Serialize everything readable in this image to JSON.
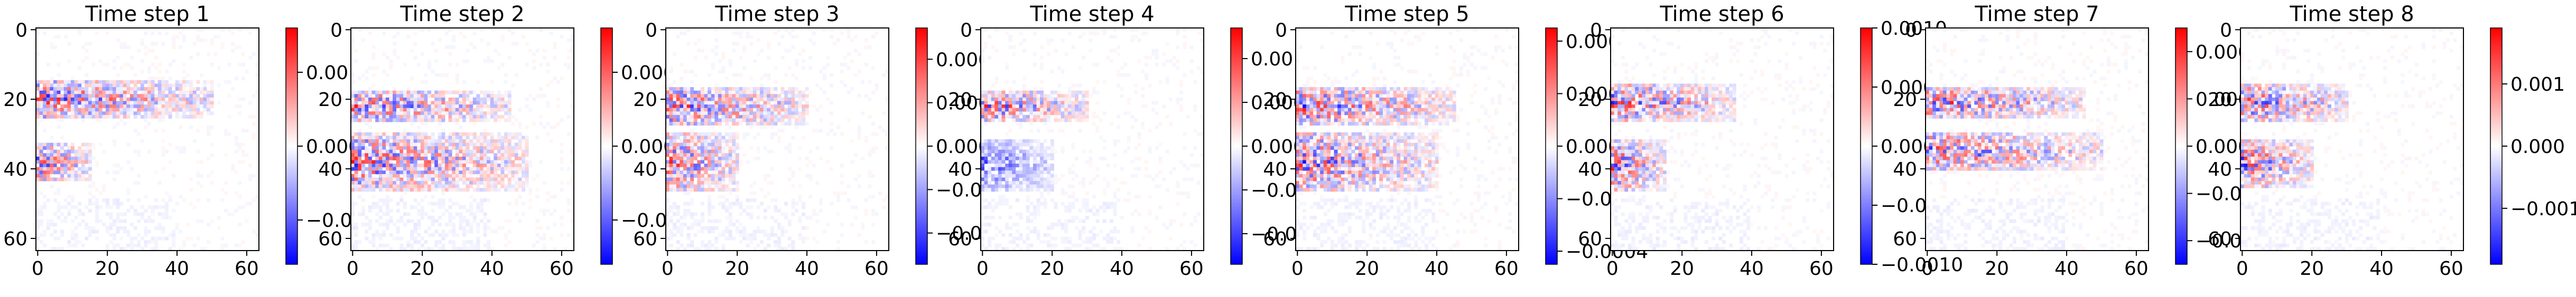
{
  "figure": {
    "background": "#ffffff",
    "colormap": "bwr",
    "colormap_colors": [
      "#0000ff",
      "#ffffff",
      "#ff0000"
    ]
  },
  "chart_data": [
    {
      "type": "heatmap",
      "title": "Time step 1",
      "xlabel": "",
      "ylabel": "",
      "xlim": [
        0,
        64
      ],
      "ylim": [
        64,
        0
      ],
      "xticks": [
        0,
        20,
        40,
        60
      ],
      "yticks": [
        0,
        20,
        40,
        60
      ],
      "xtick_labels": [
        "0",
        "20",
        "40",
        "60"
      ],
      "ytick_labels": [
        "0",
        "20",
        "40",
        "60"
      ],
      "colorbar": {
        "vmin": -0.0016,
        "vmax": 0.0016,
        "ticks": [
          -0.001,
          0.0,
          0.001
        ],
        "tick_labels": [
          "−0.001",
          "0.000",
          "0.001"
        ]
      },
      "dominant_features": [
        {
          "rows": [
            15,
            25
          ],
          "cols": [
            0,
            50
          ],
          "sign": "mixed"
        },
        {
          "rows": [
            33,
            43
          ],
          "cols": [
            0,
            15
          ],
          "sign": "mixed"
        }
      ]
    },
    {
      "type": "heatmap",
      "title": "Time step 2",
      "xlabel": "",
      "ylabel": "",
      "xlim": [
        0,
        64
      ],
      "ylim": [
        64,
        0
      ],
      "xticks": [
        0,
        20,
        40,
        60
      ],
      "yticks": [
        0,
        20,
        40,
        60
      ],
      "xtick_labels": [
        "0",
        "20",
        "40",
        "60"
      ],
      "ytick_labels": [
        "0",
        "20",
        "40",
        "60"
      ],
      "colorbar": {
        "vmin": -0.00032,
        "vmax": 0.00032,
        "ticks": [
          -0.0002,
          0.0,
          0.0002
        ],
        "tick_labels": [
          "−0.0002",
          "0.0000",
          "0.0002"
        ]
      },
      "dominant_features": [
        {
          "rows": [
            18,
            26
          ],
          "cols": [
            0,
            45
          ],
          "sign": "mixed"
        },
        {
          "rows": [
            30,
            46
          ],
          "cols": [
            0,
            50
          ],
          "sign": "mixed"
        }
      ]
    },
    {
      "type": "heatmap",
      "title": "Time step 3",
      "xlabel": "",
      "ylabel": "",
      "xlim": [
        0,
        64
      ],
      "ylim": [
        64,
        0
      ],
      "xticks": [
        0,
        20,
        40,
        60
      ],
      "yticks": [
        0,
        20,
        40,
        60
      ],
      "xtick_labels": [
        "0",
        "20",
        "40",
        "60"
      ],
      "ytick_labels": [
        "0",
        "20",
        "40",
        "60"
      ],
      "colorbar": {
        "vmin": -0.00068,
        "vmax": 0.00068,
        "ticks": [
          -0.0005,
          -0.00025,
          0.0,
          0.00025,
          0.0005
        ],
        "tick_labels": [
          "−0.00050",
          "−0.00025",
          "0.00000",
          "0.00025",
          "0.00050"
        ]
      },
      "dominant_features": [
        {
          "rows": [
            17,
            27
          ],
          "cols": [
            0,
            40
          ],
          "sign": "mixed"
        },
        {
          "rows": [
            30,
            46
          ],
          "cols": [
            0,
            20
          ],
          "sign": "mixed"
        }
      ]
    },
    {
      "type": "heatmap",
      "title": "Time step 4",
      "xlabel": "",
      "ylabel": "",
      "xlim": [
        0,
        64
      ],
      "ylim": [
        64,
        0
      ],
      "xticks": [
        0,
        20,
        40,
        60
      ],
      "yticks": [
        0,
        20,
        40,
        60
      ],
      "xtick_labels": [
        "0",
        "20",
        "40",
        "60"
      ],
      "ytick_labels": [
        "0",
        "20",
        "40",
        "60"
      ],
      "colorbar": {
        "vmin": -0.00135,
        "vmax": 0.00135,
        "ticks": [
          -0.001,
          -0.0005,
          0.0,
          0.0005,
          0.001
        ],
        "tick_labels": [
          "−0.0010",
          "−0.0005",
          "0.0000",
          "0.0005",
          "0.0010"
        ]
      },
      "dominant_features": [
        {
          "rows": [
            18,
            26
          ],
          "cols": [
            0,
            30
          ],
          "sign": "mixed"
        },
        {
          "rows": [
            32,
            46
          ],
          "cols": [
            0,
            20
          ],
          "sign": "mostly negative"
        }
      ]
    },
    {
      "type": "heatmap",
      "title": "Time step 5",
      "xlabel": "",
      "ylabel": "",
      "xlim": [
        0,
        64
      ],
      "ylim": [
        64,
        0
      ],
      "xticks": [
        0,
        20,
        40,
        60
      ],
      "yticks": [
        0,
        20,
        40,
        60
      ],
      "xtick_labels": [
        "0",
        "20",
        "40",
        "60"
      ],
      "ytick_labels": [
        "0",
        "20",
        "40",
        "60"
      ],
      "colorbar": {
        "vmin": -0.00045,
        "vmax": 0.00045,
        "ticks": [
          -0.0004,
          -0.0002,
          0.0,
          0.0002,
          0.0004
        ],
        "tick_labels": [
          "−0.0004",
          "−0.0002",
          "0.0000",
          "0.0002",
          "0.0004"
        ]
      },
      "dominant_features": [
        {
          "rows": [
            17,
            27
          ],
          "cols": [
            0,
            45
          ],
          "sign": "mixed"
        },
        {
          "rows": [
            30,
            46
          ],
          "cols": [
            0,
            40
          ],
          "sign": "mixed"
        }
      ]
    },
    {
      "type": "heatmap",
      "title": "Time step 6",
      "xlabel": "",
      "ylabel": "",
      "xlim": [
        0,
        64
      ],
      "ylim": [
        64,
        0
      ],
      "xticks": [
        0,
        20,
        40,
        60
      ],
      "yticks": [
        0,
        20,
        40,
        60
      ],
      "xtick_labels": [
        "0",
        "20",
        "40",
        "60"
      ],
      "ytick_labels": [
        "0",
        "20",
        "40",
        "60"
      ],
      "colorbar": {
        "vmin": -0.001,
        "vmax": 0.001,
        "ticks": [
          -0.001,
          -0.0005,
          0.0,
          0.0005,
          0.001
        ],
        "tick_labels": [
          "−0.0010",
          "−0.0005",
          "0.0000",
          "0.0005",
          "0.0010"
        ]
      },
      "dominant_features": [
        {
          "rows": [
            16,
            26
          ],
          "cols": [
            0,
            35
          ],
          "sign": "mixed"
        },
        {
          "rows": [
            32,
            46
          ],
          "cols": [
            0,
            15
          ],
          "sign": "mixed"
        }
      ]
    },
    {
      "type": "heatmap",
      "title": "Time step 7",
      "xlabel": "",
      "ylabel": "",
      "xlim": [
        0,
        64
      ],
      "ylim": [
        64,
        0
      ],
      "xticks": [
        0,
        20,
        40,
        60
      ],
      "yticks": [
        0,
        20,
        40,
        60
      ],
      "xtick_labels": [
        "0",
        "20",
        "40",
        "60"
      ],
      "ytick_labels": [
        "0",
        "20",
        "40",
        "60"
      ],
      "colorbar": {
        "vmin": -0.0005,
        "vmax": 0.0005,
        "ticks": [
          -0.0004,
          -0.0002,
          0.0,
          0.0002,
          0.0004
        ],
        "tick_labels": [
          "−0.0004",
          "−0.0002",
          "0.0000",
          "0.0002",
          "0.0004"
        ]
      },
      "dominant_features": [
        {
          "rows": [
            17,
            25
          ],
          "cols": [
            0,
            45
          ],
          "sign": "mixed"
        },
        {
          "rows": [
            30,
            40
          ],
          "cols": [
            0,
            50
          ],
          "sign": "mixed"
        }
      ]
    },
    {
      "type": "heatmap",
      "title": "Time step 8",
      "xlabel": "",
      "ylabel": "",
      "xlim": [
        0,
        64
      ],
      "ylim": [
        64,
        0
      ],
      "xticks": [
        0,
        20,
        40,
        60
      ],
      "yticks": [
        0,
        20,
        40,
        60
      ],
      "xtick_labels": [
        "0",
        "20",
        "40",
        "60"
      ],
      "ytick_labels": [
        "0",
        "20",
        "40",
        "60"
      ],
      "colorbar": {
        "vmin": -0.0019,
        "vmax": 0.0019,
        "ticks": [
          -0.001,
          0.0,
          0.001
        ],
        "tick_labels": [
          "−0.001",
          "0.000",
          "0.001"
        ]
      },
      "dominant_features": [
        {
          "rows": [
            16,
            26
          ],
          "cols": [
            0,
            30
          ],
          "sign": "mixed"
        },
        {
          "rows": [
            32,
            45
          ],
          "cols": [
            0,
            20
          ],
          "sign": "mixed"
        }
      ]
    }
  ]
}
